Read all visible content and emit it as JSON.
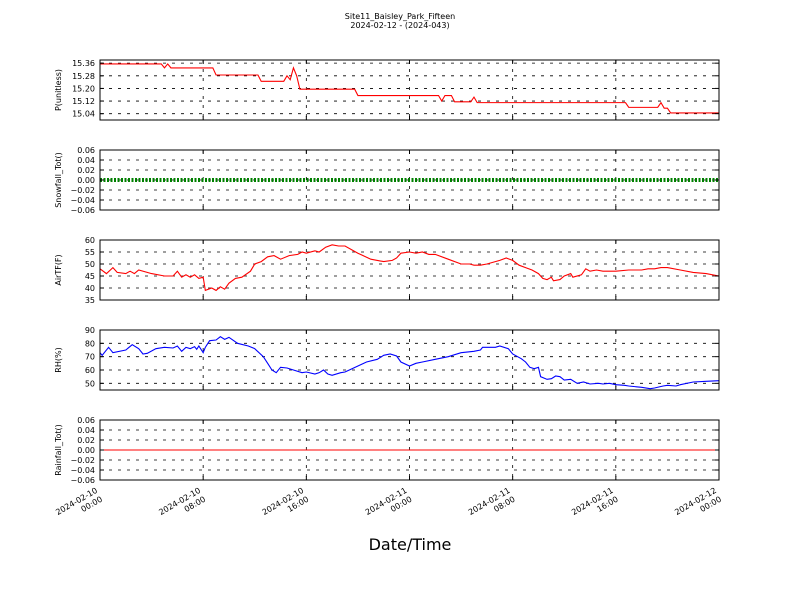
{
  "figure": {
    "title_line1": "Site11_Baisley_Park_Fifteen",
    "title_line2": "2024-02-12 - (2024-043)",
    "xlabel": "Date/Time"
  },
  "x_axis": {
    "xlim": [
      "2024-02-10 00:00",
      "2024-02-12 00:00"
    ],
    "ticks": [
      {
        "value": "2024-02-10 00:00",
        "line1": "2024-02-10",
        "line2": "00:00"
      },
      {
        "value": "2024-02-10 08:00",
        "line1": "2024-02-10",
        "line2": "08:00"
      },
      {
        "value": "2024-02-10 16:00",
        "line1": "2024-02-10",
        "line2": "16:00"
      },
      {
        "value": "2024-02-11 00:00",
        "line1": "2024-02-11",
        "line2": "00:00"
      },
      {
        "value": "2024-02-11 08:00",
        "line1": "2024-02-11",
        "line2": "08:00"
      },
      {
        "value": "2024-02-11 16:00",
        "line1": "2024-02-11",
        "line2": "16:00"
      },
      {
        "value": "2024-02-12 00:00",
        "line1": "2024-02-12",
        "line2": "00:00"
      }
    ]
  },
  "chart_data": [
    {
      "type": "line",
      "ylabel": "P(unitless)",
      "ylim": [
        15.0,
        15.38
      ],
      "yticks": [
        15.04,
        15.12,
        15.2,
        15.28,
        15.36
      ],
      "ytick_labels": [
        "15.04",
        "15.12",
        "15.20",
        "15.28",
        "15.36"
      ],
      "grid": true,
      "color": "#ff0000",
      "points": [
        [
          "2024-02-10 00:00",
          15.355
        ],
        [
          "2024-02-10 04:45",
          15.355
        ],
        [
          "2024-02-10 05:00",
          15.33
        ],
        [
          "2024-02-10 05:15",
          15.355
        ],
        [
          "2024-02-10 05:30",
          15.33
        ],
        [
          "2024-02-10 08:45",
          15.33
        ],
        [
          "2024-02-10 09:00",
          15.285
        ],
        [
          "2024-02-10 12:15",
          15.285
        ],
        [
          "2024-02-10 12:30",
          15.245
        ],
        [
          "2024-02-10 14:15",
          15.245
        ],
        [
          "2024-02-10 14:30",
          15.28
        ],
        [
          "2024-02-10 14:45",
          15.255
        ],
        [
          "2024-02-10 15:00",
          15.33
        ],
        [
          "2024-02-10 15:15",
          15.28
        ],
        [
          "2024-02-10 15:30",
          15.195
        ],
        [
          "2024-02-10 19:45",
          15.195
        ],
        [
          "2024-02-10 20:00",
          15.155
        ],
        [
          "2024-02-11 02:15",
          15.155
        ],
        [
          "2024-02-11 02:30",
          15.12
        ],
        [
          "2024-02-11 02:45",
          15.155
        ],
        [
          "2024-02-11 03:15",
          15.155
        ],
        [
          "2024-02-11 03:30",
          15.115
        ],
        [
          "2024-02-11 04:45",
          15.115
        ],
        [
          "2024-02-11 05:00",
          15.145
        ],
        [
          "2024-02-11 05:15",
          15.11
        ],
        [
          "2024-02-11 16:45",
          15.11
        ],
        [
          "2024-02-11 17:00",
          15.08
        ],
        [
          "2024-02-11 19:15",
          15.08
        ],
        [
          "2024-02-11 19:30",
          15.11
        ],
        [
          "2024-02-11 19:45",
          15.075
        ],
        [
          "2024-02-11 20:00",
          15.075
        ],
        [
          "2024-02-11 20:15",
          15.045
        ],
        [
          "2024-02-12 00:00",
          15.045
        ]
      ]
    },
    {
      "type": "line",
      "ylabel": "Snowfall_Tot()",
      "ylim": [
        -0.06,
        0.06
      ],
      "yticks": [
        -0.06,
        -0.04,
        -0.02,
        0.0,
        0.02,
        0.04,
        0.06
      ],
      "ytick_labels": [
        "−0.06",
        "−0.04",
        "−0.02",
        "0.00",
        "0.02",
        "0.04",
        "0.06"
      ],
      "grid": true,
      "color": "#008000",
      "marker": "dots",
      "points": [
        [
          "2024-02-10 00:00",
          0.0
        ],
        [
          "2024-02-12 00:00",
          0.0
        ]
      ]
    },
    {
      "type": "line",
      "ylabel": "AirTF(F)",
      "ylim": [
        35,
        60
      ],
      "yticks": [
        35,
        40,
        45,
        50,
        55,
        60
      ],
      "ytick_labels": [
        "35",
        "40",
        "45",
        "50",
        "55",
        "60"
      ],
      "grid": true,
      "color": "#ff0000",
      "points": [
        [
          "2024-02-10 00:00",
          48
        ],
        [
          "2024-02-10 00:30",
          46
        ],
        [
          "2024-02-10 01:00",
          48.5
        ],
        [
          "2024-02-10 01:20",
          46.5
        ],
        [
          "2024-02-10 02:00",
          46
        ],
        [
          "2024-02-10 02:20",
          47
        ],
        [
          "2024-02-10 02:40",
          46
        ],
        [
          "2024-02-10 03:00",
          47.5
        ],
        [
          "2024-02-10 04:00",
          46
        ],
        [
          "2024-02-10 05:00",
          45
        ],
        [
          "2024-02-10 05:40",
          45
        ],
        [
          "2024-02-10 06:00",
          47
        ],
        [
          "2024-02-10 06:20",
          44.5
        ],
        [
          "2024-02-10 06:40",
          45.5
        ],
        [
          "2024-02-10 07:00",
          44.5
        ],
        [
          "2024-02-10 07:20",
          45.5
        ],
        [
          "2024-02-10 07:40",
          44
        ],
        [
          "2024-02-10 08:00",
          44.5
        ],
        [
          "2024-02-10 08:10",
          39
        ],
        [
          "2024-02-10 08:40",
          40
        ],
        [
          "2024-02-10 09:00",
          39
        ],
        [
          "2024-02-10 09:20",
          40.5
        ],
        [
          "2024-02-10 09:40",
          39.5
        ],
        [
          "2024-02-10 10:00",
          42
        ],
        [
          "2024-02-10 10:30",
          44
        ],
        [
          "2024-02-10 11:00",
          44.5
        ],
        [
          "2024-02-10 11:40",
          47
        ],
        [
          "2024-02-10 12:00",
          50
        ],
        [
          "2024-02-10 12:30",
          51
        ],
        [
          "2024-02-10 13:00",
          53
        ],
        [
          "2024-02-10 13:30",
          53.5
        ],
        [
          "2024-02-10 14:00",
          52
        ],
        [
          "2024-02-10 14:40",
          53.5
        ],
        [
          "2024-02-10 15:20",
          54
        ],
        [
          "2024-02-10 15:40",
          55
        ],
        [
          "2024-02-10 16:00",
          54.5
        ],
        [
          "2024-02-10 16:40",
          55.5
        ],
        [
          "2024-02-10 17:00",
          55
        ],
        [
          "2024-02-10 17:30",
          57
        ],
        [
          "2024-02-10 18:00",
          58
        ],
        [
          "2024-02-10 18:30",
          57.5
        ],
        [
          "2024-02-10 19:00",
          57.5
        ],
        [
          "2024-02-10 20:00",
          54.5
        ],
        [
          "2024-02-10 21:00",
          52
        ],
        [
          "2024-02-10 22:00",
          51
        ],
        [
          "2024-02-10 22:40",
          51.5
        ],
        [
          "2024-02-10 23:00",
          52.5
        ],
        [
          "2024-02-10 23:20",
          54.5
        ],
        [
          "2024-02-11 00:00",
          55
        ],
        [
          "2024-02-11 00:30",
          54.5
        ],
        [
          "2024-02-11 01:00",
          55
        ],
        [
          "2024-02-11 01:30",
          54
        ],
        [
          "2024-02-11 02:00",
          54
        ],
        [
          "2024-02-11 03:00",
          52
        ],
        [
          "2024-02-11 04:00",
          50
        ],
        [
          "2024-02-11 04:40",
          50
        ],
        [
          "2024-02-11 05:00",
          49.5
        ],
        [
          "2024-02-11 05:30",
          49.5
        ],
        [
          "2024-02-11 06:00",
          50
        ],
        [
          "2024-02-11 07:00",
          51.5
        ],
        [
          "2024-02-11 07:30",
          52.5
        ],
        [
          "2024-02-11 08:00",
          51.5
        ],
        [
          "2024-02-11 08:30",
          49.5
        ],
        [
          "2024-02-11 09:00",
          48.5
        ],
        [
          "2024-02-11 09:30",
          47.5
        ],
        [
          "2024-02-11 10:00",
          46
        ],
        [
          "2024-02-11 10:20",
          44
        ],
        [
          "2024-02-11 10:40",
          43.5
        ],
        [
          "2024-02-11 11:00",
          44.5
        ],
        [
          "2024-02-11 11:10",
          43
        ],
        [
          "2024-02-11 11:40",
          43.5
        ],
        [
          "2024-02-11 12:00",
          45
        ],
        [
          "2024-02-11 12:30",
          46
        ],
        [
          "2024-02-11 12:40",
          44.5
        ],
        [
          "2024-02-11 13:20",
          45.5
        ],
        [
          "2024-02-11 13:40",
          48
        ],
        [
          "2024-02-11 14:00",
          47
        ],
        [
          "2024-02-11 14:30",
          47.5
        ],
        [
          "2024-02-11 15:00",
          47
        ],
        [
          "2024-02-11 16:00",
          47
        ],
        [
          "2024-02-11 17:00",
          47.5
        ],
        [
          "2024-02-11 18:00",
          47.5
        ],
        [
          "2024-02-11 18:30",
          48
        ],
        [
          "2024-02-11 19:00",
          48
        ],
        [
          "2024-02-11 19:30",
          48.5
        ],
        [
          "2024-02-11 20:00",
          48.5
        ],
        [
          "2024-02-11 21:00",
          47.5
        ],
        [
          "2024-02-11 22:00",
          46.5
        ],
        [
          "2024-02-11 23:00",
          46
        ],
        [
          "2024-02-11 23:30",
          45.5
        ],
        [
          "2024-02-12 00:00",
          45
        ]
      ]
    },
    {
      "type": "line",
      "ylabel": "RH(%)",
      "ylim": [
        45,
        90
      ],
      "yticks": [
        50,
        60,
        70,
        80,
        90
      ],
      "ytick_labels": [
        "50",
        "60",
        "70",
        "80",
        "90"
      ],
      "grid": true,
      "color": "#0000ff",
      "points": [
        [
          "2024-02-10 00:00",
          73
        ],
        [
          "2024-02-10 00:10",
          71
        ],
        [
          "2024-02-10 00:40",
          77
        ],
        [
          "2024-02-10 01:00",
          73
        ],
        [
          "2024-02-10 02:00",
          75
        ],
        [
          "2024-02-10 02:30",
          79
        ],
        [
          "2024-02-10 03:00",
          76
        ],
        [
          "2024-02-10 03:20",
          72
        ],
        [
          "2024-02-10 03:40",
          72.5
        ],
        [
          "2024-02-10 04:20",
          76
        ],
        [
          "2024-02-10 05:00",
          77
        ],
        [
          "2024-02-10 05:40",
          76.5
        ],
        [
          "2024-02-10 06:00",
          78
        ],
        [
          "2024-02-10 06:20",
          74
        ],
        [
          "2024-02-10 06:40",
          77
        ],
        [
          "2024-02-10 07:00",
          76
        ],
        [
          "2024-02-10 07:20",
          77.5
        ],
        [
          "2024-02-10 07:30",
          75.5
        ],
        [
          "2024-02-10 07:40",
          78
        ],
        [
          "2024-02-10 08:00",
          73
        ],
        [
          "2024-02-10 08:10",
          77
        ],
        [
          "2024-02-10 08:30",
          82
        ],
        [
          "2024-02-10 09:00",
          82.5
        ],
        [
          "2024-02-10 09:20",
          85
        ],
        [
          "2024-02-10 09:40",
          83
        ],
        [
          "2024-02-10 10:00",
          84.5
        ],
        [
          "2024-02-10 10:40",
          80
        ],
        [
          "2024-02-10 11:30",
          78
        ],
        [
          "2024-02-10 12:00",
          76
        ],
        [
          "2024-02-10 12:40",
          70
        ],
        [
          "2024-02-10 13:00",
          65
        ],
        [
          "2024-02-10 13:20",
          60
        ],
        [
          "2024-02-10 13:40",
          58
        ],
        [
          "2024-02-10 14:00",
          62
        ],
        [
          "2024-02-10 14:30",
          61.5
        ],
        [
          "2024-02-10 15:00",
          60
        ],
        [
          "2024-02-10 15:40",
          58
        ],
        [
          "2024-02-10 16:00",
          58.5
        ],
        [
          "2024-02-10 16:40",
          57
        ],
        [
          "2024-02-10 17:00",
          58
        ],
        [
          "2024-02-10 17:20",
          60
        ],
        [
          "2024-02-10 17:40",
          57
        ],
        [
          "2024-02-10 18:00",
          56
        ],
        [
          "2024-02-10 18:40",
          58
        ],
        [
          "2024-02-10 19:00",
          58.5
        ],
        [
          "2024-02-10 19:20",
          60
        ],
        [
          "2024-02-10 20:00",
          63
        ],
        [
          "2024-02-10 20:40",
          66
        ],
        [
          "2024-02-10 21:30",
          68
        ],
        [
          "2024-02-10 22:00",
          71
        ],
        [
          "2024-02-10 22:30",
          72
        ],
        [
          "2024-02-10 23:00",
          70.5
        ],
        [
          "2024-02-10 23:20",
          66
        ],
        [
          "2024-02-11 00:00",
          63
        ],
        [
          "2024-02-11 00:30",
          65
        ],
        [
          "2024-02-11 01:00",
          66
        ],
        [
          "2024-02-11 02:00",
          68
        ],
        [
          "2024-02-11 03:00",
          70
        ],
        [
          "2024-02-11 04:00",
          73
        ],
        [
          "2024-02-11 05:00",
          74
        ],
        [
          "2024-02-11 05:30",
          75
        ],
        [
          "2024-02-11 05:40",
          77
        ],
        [
          "2024-02-11 06:00",
          77
        ],
        [
          "2024-02-11 06:40",
          77
        ],
        [
          "2024-02-11 07:00",
          78
        ],
        [
          "2024-02-11 07:40",
          76
        ],
        [
          "2024-02-11 08:00",
          72
        ],
        [
          "2024-02-11 08:40",
          68.5
        ],
        [
          "2024-02-11 09:00",
          66
        ],
        [
          "2024-02-11 09:20",
          62
        ],
        [
          "2024-02-11 09:40",
          61
        ],
        [
          "2024-02-11 10:00",
          62
        ],
        [
          "2024-02-11 10:10",
          55
        ],
        [
          "2024-02-11 10:40",
          53
        ],
        [
          "2024-02-11 11:00",
          53.5
        ],
        [
          "2024-02-11 11:20",
          55.5
        ],
        [
          "2024-02-11 11:40",
          55
        ],
        [
          "2024-02-11 12:00",
          52.5
        ],
        [
          "2024-02-11 12:30",
          53
        ],
        [
          "2024-02-11 13:00",
          50
        ],
        [
          "2024-02-11 13:30",
          51
        ],
        [
          "2024-02-11 14:00",
          49.5
        ],
        [
          "2024-02-11 14:40",
          50
        ],
        [
          "2024-02-11 15:00",
          49.5
        ],
        [
          "2024-02-11 15:30",
          50
        ],
        [
          "2024-02-11 16:00",
          49
        ],
        [
          "2024-02-11 16:40",
          48.5
        ],
        [
          "2024-02-11 17:00",
          48
        ],
        [
          "2024-02-11 18:00",
          47
        ],
        [
          "2024-02-11 18:40",
          46
        ],
        [
          "2024-02-11 19:00",
          46.5
        ],
        [
          "2024-02-11 19:40",
          48
        ],
        [
          "2024-02-11 20:00",
          48.5
        ],
        [
          "2024-02-11 20:40",
          48
        ],
        [
          "2024-02-11 21:00",
          49
        ],
        [
          "2024-02-11 22:00",
          51
        ],
        [
          "2024-02-11 23:00",
          51.5
        ],
        [
          "2024-02-12 00:00",
          52
        ]
      ]
    },
    {
      "type": "line",
      "ylabel": "Rainfall_Tot()",
      "ylim": [
        -0.06,
        0.06
      ],
      "yticks": [
        -0.06,
        -0.04,
        -0.02,
        0.0,
        0.02,
        0.04,
        0.06
      ],
      "ytick_labels": [
        "−0.06",
        "−0.04",
        "−0.02",
        "0.00",
        "0.02",
        "0.04",
        "0.06"
      ],
      "grid": true,
      "color": "#ff0000",
      "points": [
        [
          "2024-02-10 00:00",
          0.0
        ],
        [
          "2024-02-12 00:00",
          0.0
        ]
      ]
    }
  ]
}
